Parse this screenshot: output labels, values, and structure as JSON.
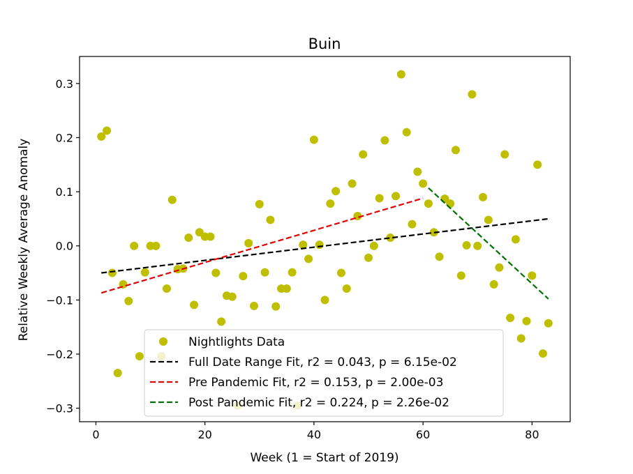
{
  "chart_data": {
    "type": "scatter",
    "title": "Buin",
    "xlabel": "Week (1 = Start of 2019)",
    "ylabel": "Relative Weekly Average Anomaly",
    "xlim": [
      -3,
      87
    ],
    "ylim": [
      -0.325,
      0.35
    ],
    "xticks": [
      0,
      20,
      40,
      60,
      80
    ],
    "xtick_labels": [
      "0",
      "20",
      "40",
      "60",
      "80"
    ],
    "yticks": [
      -0.3,
      -0.2,
      -0.1,
      0.0,
      0.1,
      0.2,
      0.3
    ],
    "ytick_labels": [
      "−0.3",
      "−0.2",
      "−0.1",
      "0.0",
      "0.1",
      "0.2",
      "0.3"
    ],
    "grid": false,
    "legend_position": "lower center",
    "series": [
      {
        "name": "Nightlights Data",
        "kind": "scatter",
        "color": "#bfbf00",
        "points": [
          [
            1,
            0.202
          ],
          [
            2,
            0.213
          ],
          [
            3,
            -0.05
          ],
          [
            4,
            -0.235
          ],
          [
            5,
            -0.071
          ],
          [
            6,
            -0.102
          ],
          [
            7,
            0.0
          ],
          [
            8,
            -0.204
          ],
          [
            9,
            -0.049
          ],
          [
            10,
            0.0
          ],
          [
            11,
            0.0
          ],
          [
            12,
            -0.204
          ],
          [
            13,
            -0.079
          ],
          [
            14,
            0.085
          ],
          [
            15,
            -0.043
          ],
          [
            16,
            -0.042
          ],
          [
            17,
            0.015
          ],
          [
            18,
            -0.109
          ],
          [
            19,
            0.025
          ],
          [
            20,
            0.017
          ],
          [
            21,
            0.017
          ],
          [
            22,
            -0.05
          ],
          [
            23,
            -0.14
          ],
          [
            24,
            -0.092
          ],
          [
            25,
            -0.094
          ],
          [
            26,
            -0.295
          ],
          [
            27,
            -0.056
          ],
          [
            28,
            0.005
          ],
          [
            29,
            -0.111
          ],
          [
            30,
            0.077
          ],
          [
            31,
            -0.049
          ],
          [
            32,
            0.048
          ],
          [
            33,
            -0.112
          ],
          [
            34,
            -0.079
          ],
          [
            35,
            -0.079
          ],
          [
            36,
            -0.049
          ],
          [
            37,
            -0.295
          ],
          [
            38,
            0.002
          ],
          [
            39,
            -0.024
          ],
          [
            40,
            0.196
          ],
          [
            41,
            0.002
          ],
          [
            42,
            -0.1
          ],
          [
            43,
            0.078
          ],
          [
            44,
            0.101
          ],
          [
            45,
            -0.05
          ],
          [
            46,
            -0.079
          ],
          [
            47,
            0.115
          ],
          [
            48,
            0.055
          ],
          [
            49,
            0.169
          ],
          [
            50,
            -0.022
          ],
          [
            51,
            0.0
          ],
          [
            52,
            0.088
          ],
          [
            53,
            0.195
          ],
          [
            54,
            0.015
          ],
          [
            55,
            0.092
          ],
          [
            56,
            0.317
          ],
          [
            57,
            0.21
          ],
          [
            58,
            0.04
          ],
          [
            59,
            0.137
          ],
          [
            60,
            0.115
          ],
          [
            61,
            0.078
          ],
          [
            62,
            0.025
          ],
          [
            63,
            -0.02
          ],
          [
            64,
            0.087
          ],
          [
            65,
            0.078
          ],
          [
            66,
            0.177
          ],
          [
            67,
            -0.055
          ],
          [
            68,
            0.001
          ],
          [
            69,
            0.28
          ],
          [
            70,
            0.0
          ],
          [
            71,
            0.09
          ],
          [
            72,
            0.048
          ],
          [
            73,
            -0.071
          ],
          [
            74,
            -0.04
          ],
          [
            75,
            0.169
          ],
          [
            76,
            -0.133
          ],
          [
            77,
            0.012
          ],
          [
            78,
            -0.171
          ],
          [
            79,
            -0.139
          ],
          [
            80,
            -0.055
          ],
          [
            81,
            0.15
          ],
          [
            82,
            -0.199
          ],
          [
            83,
            -0.143
          ]
        ]
      },
      {
        "name": "Full Date Range Fit, r2 = 0.043, p = 6.15e-02",
        "kind": "line",
        "color": "#000000",
        "dash": "dashed",
        "x": [
          1,
          83
        ],
        "y": [
          -0.05,
          0.05
        ]
      },
      {
        "name": "Pre Pandemic Fit, r2 = 0.153, p = 2.00e-03",
        "kind": "line",
        "color": "#e00000",
        "dash": "dashed",
        "x": [
          1,
          60
        ],
        "y": [
          -0.087,
          0.088
        ]
      },
      {
        "name": "Post Pandemic Fit, r2 = 0.224, p = 2.26e-02",
        "kind": "line",
        "color": "#007000",
        "dash": "dashed",
        "x": [
          61,
          83
        ],
        "y": [
          0.107,
          -0.098
        ]
      }
    ]
  }
}
